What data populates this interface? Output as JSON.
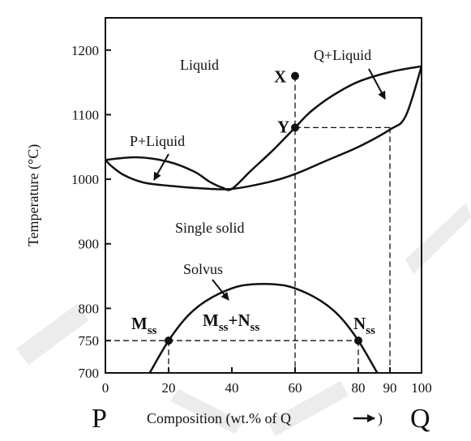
{
  "chart_data": {
    "type": "phase-diagram",
    "xlabel": "Composition (wt.% of Q",
    "ylabel": "Temperature (°C)",
    "x_end_labels": [
      "P",
      "Q"
    ],
    "xticks": [
      0,
      20,
      40,
      60,
      80,
      90,
      100
    ],
    "yticks": [
      700,
      750,
      800,
      900,
      1000,
      1100,
      1200
    ],
    "xlim": [
      0,
      100
    ],
    "ylim": [
      700,
      1250
    ],
    "melting_points": {
      "P": 1030,
      "Q": 1175
    },
    "minimum": {
      "x": 40,
      "y": 985
    },
    "curves": {
      "liquidus": [
        [
          0,
          1030
        ],
        [
          10,
          1034
        ],
        [
          20,
          1027
        ],
        [
          28,
          1012
        ],
        [
          33,
          996
        ],
        [
          37,
          987
        ],
        [
          40,
          985
        ],
        [
          46,
          1013
        ],
        [
          53,
          1045
        ],
        [
          60,
          1080
        ],
        [
          65,
          1105
        ],
        [
          72,
          1130
        ],
        [
          80,
          1151
        ],
        [
          90,
          1166
        ],
        [
          100,
          1175
        ]
      ],
      "solidus": [
        [
          0,
          1030
        ],
        [
          2,
          1020
        ],
        [
          6,
          1006
        ],
        [
          12,
          995
        ],
        [
          20,
          990
        ],
        [
          30,
          986
        ],
        [
          40,
          985
        ],
        [
          52,
          996
        ],
        [
          60,
          1008
        ],
        [
          70,
          1029
        ],
        [
          80,
          1050
        ],
        [
          90,
          1077
        ],
        [
          95,
          1098
        ],
        [
          100,
          1175
        ]
      ],
      "solvus": [
        [
          14,
          700
        ],
        [
          20,
          750
        ],
        [
          26,
          788
        ],
        [
          32,
          812
        ],
        [
          40,
          831
        ],
        [
          46,
          837
        ],
        [
          54,
          837
        ],
        [
          60,
          831
        ],
        [
          68,
          812
        ],
        [
          74,
          788
        ],
        [
          80,
          750
        ],
        [
          86,
          700
        ]
      ]
    },
    "points": [
      {
        "label": "X",
        "x": 60,
        "y": 1160
      },
      {
        "label": "Y",
        "x": 60,
        "y": 1080
      },
      {
        "label": "M",
        "sub": "ss",
        "x": 20,
        "y": 750
      },
      {
        "label": "N",
        "sub": "ss",
        "x": 80,
        "y": 750
      }
    ],
    "dashed_lines": [
      {
        "from": [
          60,
          1160
        ],
        "to": [
          60,
          700
        ]
      },
      {
        "from": [
          60,
          1080
        ],
        "to": [
          90,
          1080
        ]
      },
      {
        "from": [
          90,
          1080
        ],
        "to": [
          90,
          700
        ]
      },
      {
        "from": [
          0,
          750
        ],
        "to": [
          80,
          750
        ]
      },
      {
        "from": [
          20,
          750
        ],
        "to": [
          20,
          700
        ]
      },
      {
        "from": [
          80,
          750
        ],
        "to": [
          80,
          700
        ]
      }
    ],
    "region_labels": {
      "liquid": "Liquid",
      "single_solid": "Single solid",
      "p_liquid": "P+Liquid",
      "q_liquid": "Q+Liquid",
      "solvus": "Solvus",
      "two_solid_m": "M",
      "two_solid_plus": "+N",
      "two_solid_sub": "ss"
    },
    "grid": false,
    "legend": "none",
    "colors": {
      "line": "#111111",
      "watermark": "#e6e6e6"
    }
  }
}
